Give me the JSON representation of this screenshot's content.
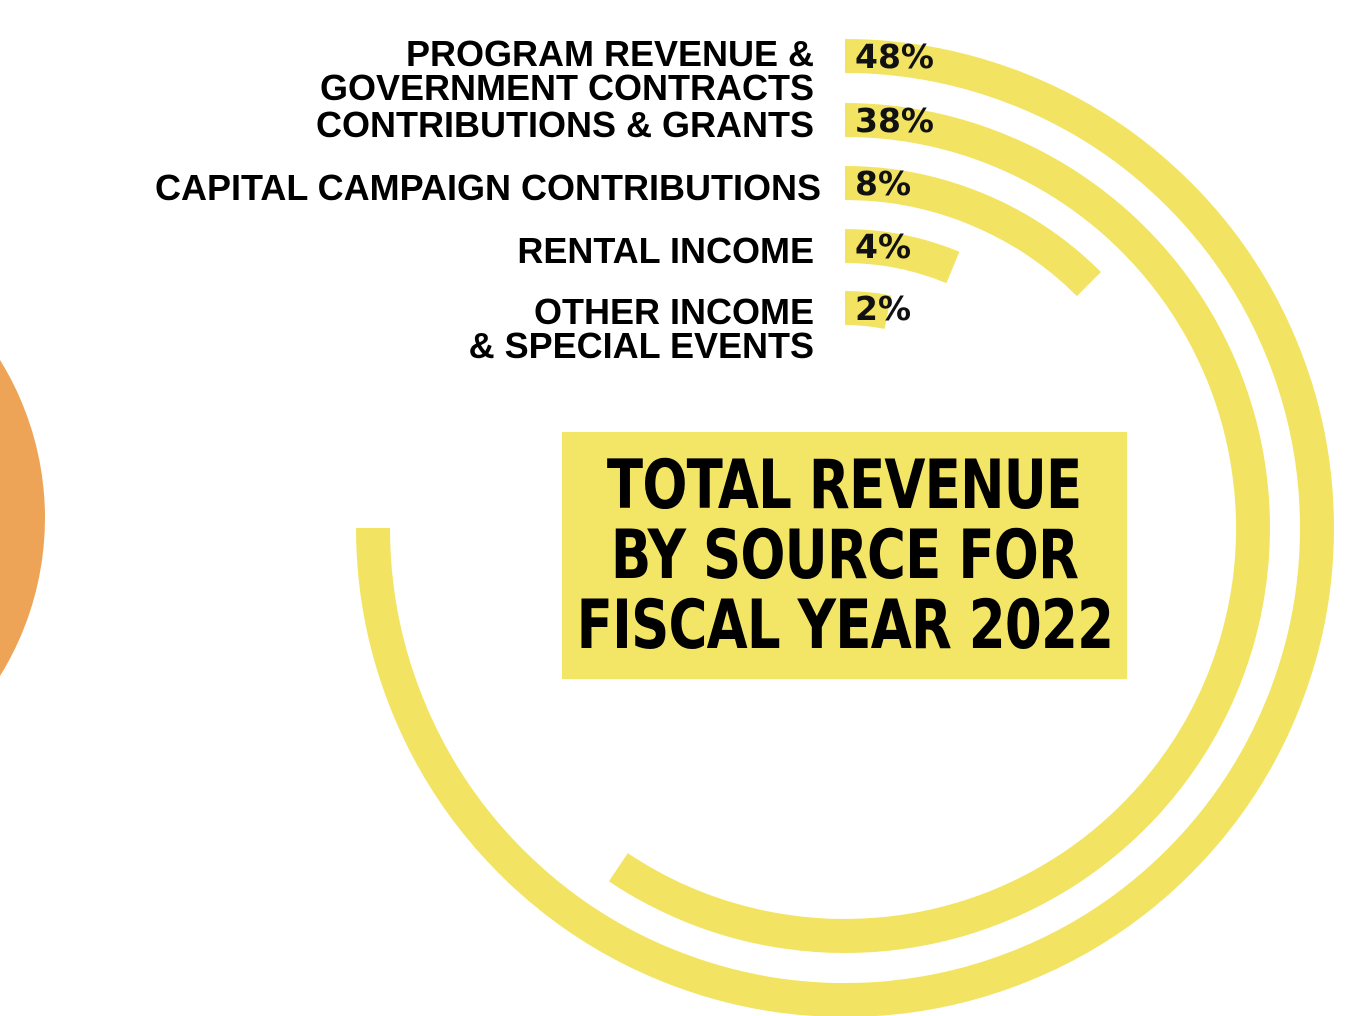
{
  "colors": {
    "arc": "#f2e462",
    "title_bg": "#f3e565",
    "side_circle": "#eea456",
    "text": "#000000"
  },
  "title_lines": [
    "TOTAL REVENUE",
    "BY SOURCE FOR",
    "FISCAL YEAR 2022"
  ],
  "chart_data": {
    "type": "radial-bar",
    "title": "TOTAL REVENUE BY SOURCE FOR FISCAL YEAR 2022",
    "unit": "%",
    "categories": [
      "PROGRAM REVENUE & GOVERNMENT CONTRACTS",
      "CONTRIBUTIONS & GRANTS",
      "CAPITAL CAMPAIGN CONTRIBUTIONS",
      "RENTAL INCOME",
      "OTHER INCOME & SPECIAL EVENTS"
    ],
    "label_lines": [
      [
        "PROGRAM REVENUE &",
        "GOVERNMENT CONTRACTS"
      ],
      [
        "CONTRIBUTIONS & GRANTS"
      ],
      [
        "CAPITAL CAMPAIGN CONTRIBUTIONS"
      ],
      [
        "RENTAL INCOME"
      ],
      [
        "OTHER INCOME",
        "& SPECIAL EVENTS"
      ]
    ],
    "values": [
      48,
      38,
      8,
      4,
      2
    ],
    "value_labels": [
      "48%",
      "38%",
      "8%",
      "4%",
      "2%"
    ]
  }
}
